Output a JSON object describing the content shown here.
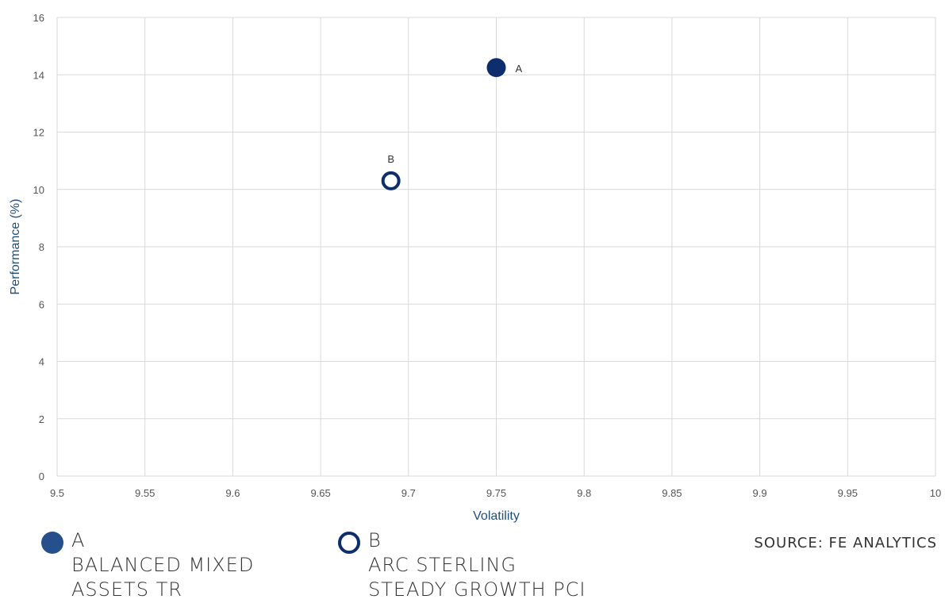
{
  "chart_data": {
    "type": "scatter",
    "xlabel": "Volatility",
    "ylabel": "Performance (%)",
    "xlim": [
      9.5,
      10
    ],
    "ylim": [
      0,
      16
    ],
    "x_ticks": [
      "9.5",
      "9.55",
      "9.6",
      "9.65",
      "9.7",
      "9.75",
      "9.8",
      "9.85",
      "9.9",
      "9.95",
      "10"
    ],
    "y_ticks": [
      "0",
      "2",
      "4",
      "6",
      "8",
      "10",
      "12",
      "14",
      "16"
    ],
    "grid": true,
    "points": [
      {
        "label": "A",
        "x": 9.75,
        "y": 14.25,
        "style": "filled"
      },
      {
        "label": "B",
        "x": 9.69,
        "y": 10.3,
        "style": "hollow"
      }
    ]
  },
  "legend": {
    "items": [
      {
        "letter": "A",
        "line1": "BALANCED MIXED",
        "line2": "ASSETS TR",
        "style": "filled"
      },
      {
        "letter": "B",
        "line1": "ARC STERLING",
        "line2": "STEADY GROWTH PCI",
        "style": "hollow"
      }
    ]
  },
  "source_text": "SOURCE: FE ANALYTICS",
  "colors": {
    "marker_primary": "#0d2d6c",
    "legend_filled": "#25508c",
    "axis_title": "#1f4e79",
    "grid": "#d9d9d9",
    "tick_text": "#555555"
  }
}
